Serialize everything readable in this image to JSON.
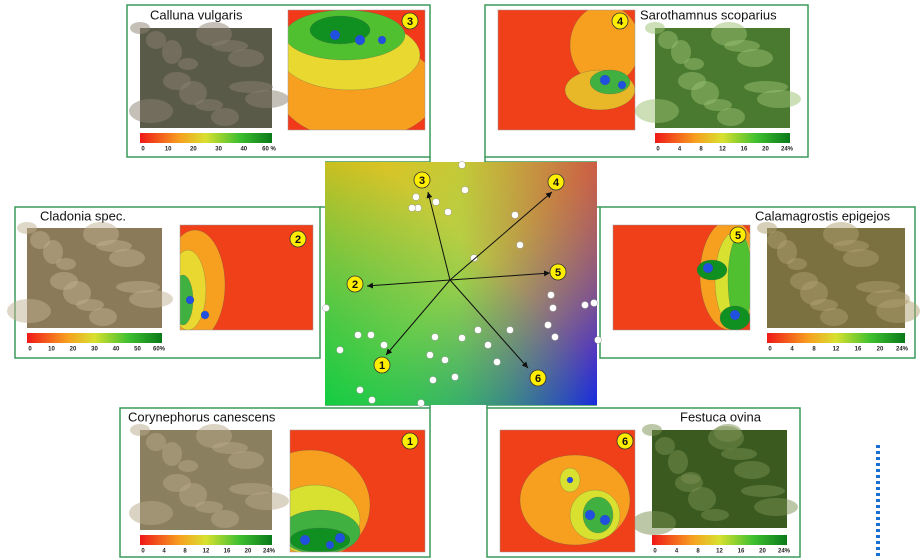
{
  "panels": [
    {
      "title": "Calluna vulgaris",
      "number": "3",
      "scale": [
        "0",
        "10",
        "20",
        "30",
        "40",
        "60 %"
      ]
    },
    {
      "title": "Sarothamnus scoparius",
      "number": "4",
      "scale": [
        "0",
        "4",
        "8",
        "12",
        "16",
        "20",
        "24%"
      ]
    },
    {
      "title": "Cladonia spec.",
      "number": "2",
      "scale": [
        "0",
        "10",
        "20",
        "30",
        "40",
        "50",
        "60%"
      ]
    },
    {
      "title": "Calamagrostis epigejos",
      "number": "5",
      "scale": [
        "0",
        "4",
        "8",
        "12",
        "16",
        "20",
        "24%"
      ]
    },
    {
      "title": "Corynephorus canescens",
      "number": "1",
      "scale": [
        "0",
        "4",
        "8",
        "12",
        "16",
        "20",
        "24%"
      ]
    },
    {
      "title": "Festuca ovina",
      "number": "6",
      "scale": [
        "0",
        "4",
        "8",
        "12",
        "16",
        "20",
        "24%"
      ]
    }
  ],
  "ordination": {
    "arrows": [
      "1",
      "2",
      "3",
      "4",
      "5",
      "6"
    ]
  }
}
